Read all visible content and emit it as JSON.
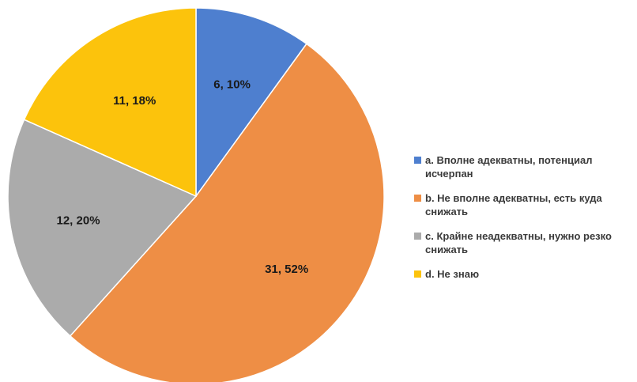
{
  "chart_data": {
    "type": "pie",
    "title": "",
    "slices": [
      {
        "category": "a. Вполне адекватны, потенциал исчерпан",
        "value": 6,
        "percent": 10,
        "label": "6, 10%",
        "color": "#4e7fcf"
      },
      {
        "category": "b. Не вполне адекватны, есть куда снижать",
        "value": 31,
        "percent": 52,
        "label": "31, 52%",
        "color": "#ee8e45"
      },
      {
        "category": "c. Крайне неадекватны, нужно резко снижать",
        "value": 12,
        "percent": 20,
        "label": "12, 20%",
        "color": "#ababab"
      },
      {
        "category": "d. Не знаю",
        "value": 11,
        "percent": 18,
        "label": "11, 18%",
        "color": "#fcc30c"
      }
    ],
    "legend_position": "right",
    "start_angle": "12 o'clock",
    "direction": "clockwise"
  },
  "legend": {
    "items": [
      {
        "label": "a. Вполне адекватны, потенциал исчерпан"
      },
      {
        "label": "b. Не вполне адекватны, есть куда снижать"
      },
      {
        "label": "c. Крайне неадекватны, нужно резко снижать"
      },
      {
        "label": "d. Не знаю"
      }
    ]
  }
}
